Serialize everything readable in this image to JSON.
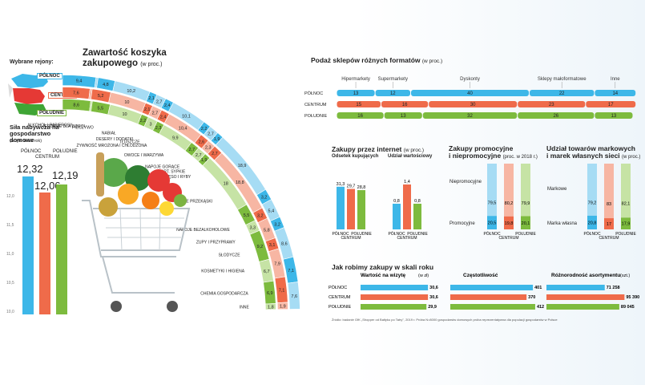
{
  "colors": {
    "north": "#3db7e8",
    "center": "#ef6b4a",
    "south": "#7dbb3e",
    "north_light": "#a6dcf4",
    "center_light": "#f7b6a3",
    "south_light": "#c6e3a5"
  },
  "header": {
    "regions_label": "Wybrane rejony:",
    "title": "Zawartość koszyka zakupowego",
    "title_unit": "(w proc.)"
  },
  "regions": [
    "PÓŁNOC",
    "CENTRUM",
    "POŁUDNIE"
  ],
  "purchasing_power": {
    "title": "Siła nabywcza na gospodarstwo domowe",
    "unit": "(w tys. zł na rok)",
    "labels": [
      "PÓŁNOC",
      "CENTRUM",
      "POŁUDNIE"
    ],
    "values_text": [
      "12,32",
      "12,06",
      "12,19"
    ],
    "ticks": [
      "12,0",
      "11,5",
      "11,0",
      "10,5",
      "10,0"
    ]
  },
  "chart_data": [
    {
      "type": "bar",
      "title": "Zawartość koszyka zakupowego",
      "unit": "(w proc.)",
      "categories": [
        "ALKOHOL I PAPIEROSY",
        "JEDZENIE DLA DZIECI",
        "PIECZYWO",
        "NABIAŁ",
        "DESERY I DODATKI",
        "TŁUSZCZE",
        "ŻYWNOŚĆ MROŻONA I CHŁODZONA",
        "OWOCE I WARZYWA",
        "NAPOJE GORĄCE",
        "ART. SYPKIE",
        "MIĘSO I RYBY",
        "SŁONE PRZEKĄSKI",
        "NAPOJE BEZALKOHOLOWE",
        "ZUPY I PRZYPRAWY",
        "SŁODYCZE",
        "KOSMETYKI I HIGIENA",
        "CHEMIA GOSPODARCZA",
        "INNE"
      ],
      "series": [
        {
          "name": "PÓŁNOC",
          "values": [
            9.4,
            0.6,
            4.8,
            10.2,
            2.1,
            2.7,
            2.4,
            10.1,
            2.2,
            2.7,
            1.9,
            18.9,
            3.2,
            5.4,
            3.2,
            8.6,
            7.1,
            7.6
          ]
        },
        {
          "name": "CENTRUM",
          "values": [
            7.6,
            0.6,
            5.2,
            10.0,
            2.1,
            2.7,
            2.4,
            10.4,
            2.6,
            2.3,
            2.7,
            18.8,
            3.2,
            5.8,
            3.1,
            7.9,
            7.1,
            1.9
          ]
        },
        {
          "name": "POŁUDNIE",
          "values": [
            8.6,
            0.5,
            5.5,
            10.0,
            2.2,
            3.0,
            2.3,
            9.9,
            2.7,
            2.7,
            1.9,
            18.0,
            5.5,
            3.3,
            9.2,
            6.7,
            6.9,
            1.8
          ]
        }
      ],
      "label_text": {
        "PÓŁNOC": [
          "9,4",
          "0,6",
          "4,8",
          "10,2",
          "2,1",
          "2,7",
          "2,4",
          "10,1",
          "2,2",
          "2,7",
          "1,9",
          "18,9",
          "3,2",
          "5,4",
          "3,2",
          "8,6",
          "7,1",
          "7,6"
        ],
        "CENTRUM": [
          "7,6",
          "0,6",
          "5,2",
          "10",
          "2,1",
          "2,7",
          "2,4",
          "10,4",
          "2,6",
          "2,3",
          "2,7",
          "18,8",
          "3,2",
          "5,8",
          "3,1",
          "7,9",
          "7,1",
          "1,9"
        ],
        "POŁUDNIE": [
          "8,6",
          "0,5",
          "5,5",
          "10",
          "2,2",
          "3",
          "2,3",
          "9,9",
          "2,7",
          "2,7",
          "1,9",
          "18",
          "5,5",
          "3,3",
          "9,2",
          "6,7",
          "6,9",
          "1,8"
        ]
      }
    },
    {
      "type": "bar",
      "title": "Podaż sklepów różnych formatów",
      "unit": "(w proc.)",
      "categories": [
        "Hipermarkety",
        "Supermarkety",
        "Dyskonty",
        "Sklepy małoformatowe",
        "Inne"
      ],
      "rows": [
        "PÓŁNOC",
        "CENTRUM",
        "POŁUDNIE"
      ],
      "series": [
        {
          "name": "PÓŁNOC",
          "values": [
            13,
            12,
            40,
            22,
            14
          ]
        },
        {
          "name": "CENTRUM",
          "values": [
            15,
            16,
            30,
            23,
            17
          ]
        },
        {
          "name": "POŁUDNIE",
          "values": [
            16,
            13,
            32,
            26,
            13
          ]
        }
      ]
    },
    {
      "type": "bar",
      "title": "Zakupy przez internet",
      "unit": "(w proc.)",
      "groups": [
        {
          "name": "Odsetek kupujących",
          "values": [
            31.3,
            29.7,
            28.8
          ],
          "labels": [
            "31,3",
            "29,7",
            "28,8"
          ]
        },
        {
          "name": "Udział wartościowy",
          "values": [
            0.8,
            1.4,
            0.8
          ],
          "labels": [
            "0,8",
            "1,4",
            "0,8"
          ]
        }
      ],
      "categories": [
        "PÓŁNOC",
        "CENTRUM",
        "POŁUDNIE"
      ]
    },
    {
      "type": "bar",
      "title": "Zakupy promocyjne i niepromocyjne",
      "unit": "(proc. w 2018 r.)",
      "stack": [
        "Niepromocyjne",
        "Promocyjne"
      ],
      "categories": [
        "PÓŁNOC",
        "CENTRUM",
        "POŁUDNIE"
      ],
      "series": [
        {
          "name": "Niepromocyjne",
          "values": [
            79.5,
            80.2,
            79.9
          ],
          "labels": [
            "79,5",
            "80,2",
            "79,9"
          ]
        },
        {
          "name": "Promocyjne",
          "values": [
            20.5,
            19.8,
            20.1
          ],
          "labels": [
            "20,5",
            "19,8",
            "20,1"
          ]
        }
      ]
    },
    {
      "type": "bar",
      "title": "Udział towarów markowych i marek własnych sieci",
      "unit": "(w proc.)",
      "stack": [
        "Markowe",
        "Marka własna"
      ],
      "categories": [
        "PÓŁNOC",
        "CENTRUM",
        "POŁUDNIE"
      ],
      "series": [
        {
          "name": "Markowe",
          "values": [
            79.2,
            83,
            82.1
          ],
          "labels": [
            "79,2",
            "83",
            "82,1"
          ]
        },
        {
          "name": "Marka własna",
          "values": [
            20.8,
            17,
            17.9
          ],
          "labels": [
            "20,8",
            "17",
            "17,9"
          ]
        }
      ]
    },
    {
      "type": "bar",
      "title": "Jak robimy zakupy w skali roku",
      "metrics": [
        {
          "name": "Wartość na wizytę",
          "unit": "(w zł)",
          "values": [
            30.6,
            30.6,
            29.9
          ],
          "labels": [
            "30,6",
            "30,6",
            "29,9"
          ]
        },
        {
          "name": "Częstotliwość",
          "values": [
            401,
            370,
            412
          ],
          "labels": [
            "401",
            "370",
            "412"
          ]
        },
        {
          "name": "Różnorodność asortymentu",
          "unit": "(szt.)",
          "values": [
            71258,
            95390,
            89045
          ],
          "labels": [
            "71 258",
            "95 390",
            "89 045"
          ]
        }
      ],
      "categories": [
        "PÓŁNOC",
        "CENTRUM",
        "POŁUDNIE"
      ]
    }
  ],
  "store_formats": {
    "title": "Podaż sklepów różnych formatów",
    "unit": "(w proc.)",
    "row_labels": [
      "PÓŁNOC",
      "CENTRUM",
      "POŁUDNIE"
    ],
    "labels": {
      "PÓŁNOC": [
        "13",
        "12",
        "40",
        "22",
        "14"
      ],
      "CENTRUM": [
        "15",
        "16",
        "30",
        "23",
        "17"
      ],
      "POŁUDNIE": [
        "16",
        "13",
        "32",
        "26",
        "13"
      ]
    }
  },
  "internet": {
    "title": "Zakupy przez internet",
    "unit": "(w proc.)",
    "g1": "Odsetek kupujących",
    "g2": "Udział wartościowy",
    "xl": [
      "PÓŁNOC",
      "CENTRUM",
      "POŁUDNIE"
    ]
  },
  "promo": {
    "title": "Zakupy promocyjne",
    "title2": "i niepromocyjne",
    "unit": "(proc. w 2018 r.)",
    "top": "Niepromocyjne",
    "bottom": "Promocyjne"
  },
  "brands": {
    "title": "Udział towarów markowych",
    "title2": "i marek własnych sieci",
    "unit": "(w proc.)",
    "top": "Markowe",
    "bottom": "Marka własna"
  },
  "yearly": {
    "title": "Jak robimy zakupy w skali roku",
    "m1": "Wartość na wizytę",
    "m1u": "(w zł)",
    "m2": "Częstotliwość",
    "m3": "Różnorodność asortymentu",
    "m3u": "(szt.)"
  },
  "footer": {
    "source": "Źródło: badanie GfK „Shopper od Bałtyku po Tatry\", 2019 r. Próba N=8000 gospodarstw domowych próba reprezentatywna dla populacji gospodarstw w Polsce"
  }
}
